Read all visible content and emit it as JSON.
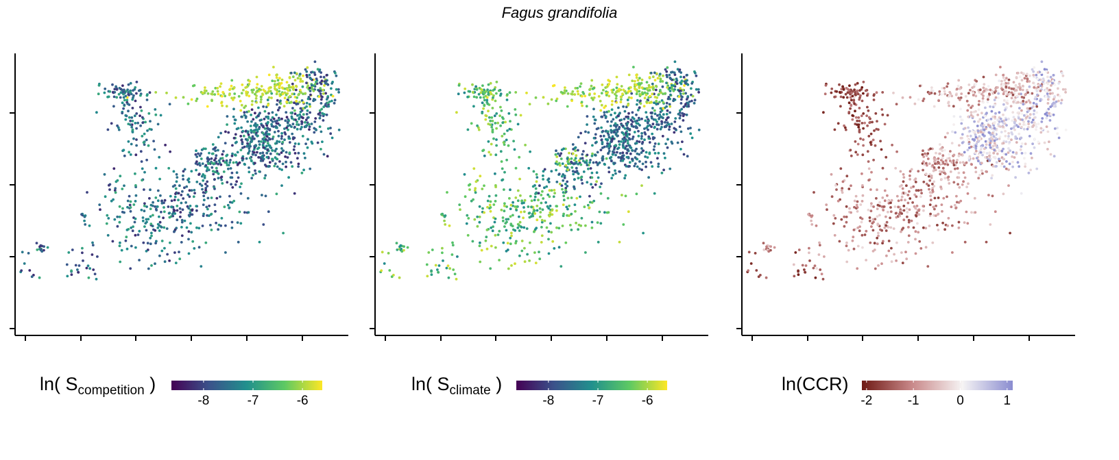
{
  "title": "Fagus grandifolia",
  "chart_data": [
    {
      "type": "scatter",
      "xlabel": "",
      "ylabel": "",
      "legend": {
        "label_main": "ln( S",
        "label_sub": "competition",
        "label_end": " )",
        "ticks": [
          "-8",
          "-7",
          "-6"
        ],
        "tick_values": [
          -8,
          -7,
          -6
        ],
        "range": [
          -8.65,
          -5.6
        ],
        "colors": [
          "#440154",
          "#3b528b",
          "#21908d",
          "#5dc963",
          "#fde725"
        ]
      }
    },
    {
      "type": "scatter",
      "xlabel": "",
      "ylabel": "",
      "legend": {
        "label_main": "ln( S",
        "label_sub": "climate",
        "label_end": " )",
        "ticks": [
          "-8",
          "-7",
          "-6"
        ],
        "tick_values": [
          -8,
          -7,
          -6
        ],
        "range": [
          -8.65,
          -5.6
        ],
        "colors": [
          "#440154",
          "#3b528b",
          "#21908d",
          "#5dc963",
          "#fde725"
        ]
      }
    },
    {
      "type": "scatter",
      "xlabel": "",
      "ylabel": "",
      "legend": {
        "label_main": "ln(CCR)",
        "label_sub": "",
        "label_end": "",
        "ticks": [
          "-2",
          "-1",
          "0",
          "1"
        ],
        "tick_values": [
          -2,
          -1,
          0,
          1
        ],
        "range": [
          -2.1,
          1.12
        ],
        "colors": [
          "#6e1a14",
          "#c9898a",
          "#f6f4f4",
          "#8a8cd0"
        ]
      }
    }
  ]
}
